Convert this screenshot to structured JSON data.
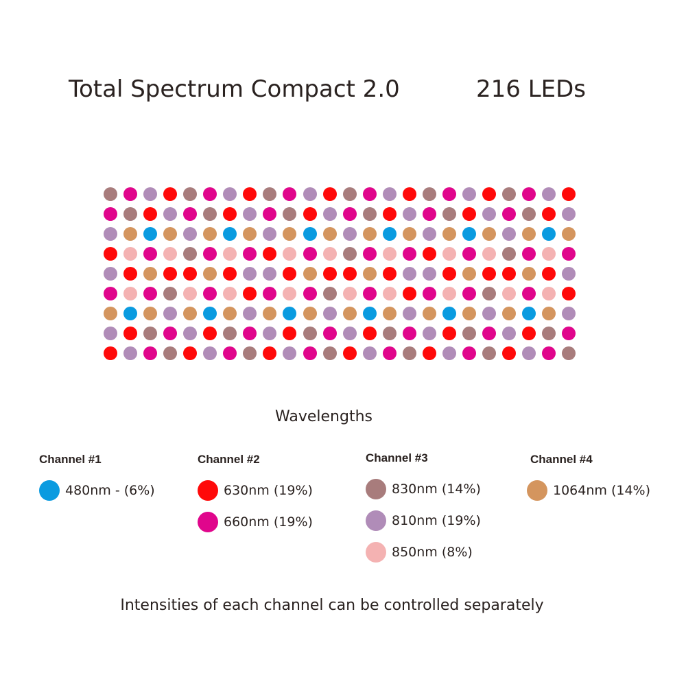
{
  "header": {
    "title": "Total Spectrum Compact 2.0",
    "led_count": "216 LEDs"
  },
  "colors": {
    "B": "#0a9be0",
    "R": "#ff0a0a",
    "M": "#e0068c",
    "D": "#a87c7c",
    "L": "#b08cb8",
    "P": "#f4b2b2",
    "O": "#d4955e"
  },
  "grid_rows": [
    "DMLRDMLRDMLRDMLRDMLRDMLR",
    "MDRLMDRLMDRLMDRLMDRLMDRL",
    "LOBOLOBOLOBOLOBOLOBOLOBO",
    "RPMPDMPMRPMPDMPMRPMPDMPM",
    "LRORRORLLRORRORLLRORRORL",
    "MPMDPMPRMPMDPMPRMPMDPMPR",
    "OBOLOBOLOBOLOBOLOBOLOBOL",
    "LRDMLRDMLRDMLRDMLRDMLRDM",
    "RLMDRLMDRLMDRLMDRLMDRLMD"
  ],
  "legend": {
    "title": "Wavelengths",
    "channels": [
      {
        "name": "Channel #1",
        "items": [
          {
            "label": "480nm - (6%)",
            "color": "#0a9be0"
          }
        ]
      },
      {
        "name": "Channel #2",
        "items": [
          {
            "label": "630nm (19%)",
            "color": "#ff0a0a"
          },
          {
            "label": "660nm (19%)",
            "color": "#e0068c"
          }
        ]
      },
      {
        "name": "Channel #3",
        "items": [
          {
            "label": "830nm (14%)",
            "color": "#a87c7c"
          },
          {
            "label": "810nm (19%)",
            "color": "#b08cb8"
          },
          {
            "label": "850nm (8%)",
            "color": "#f4b2b2"
          }
        ]
      },
      {
        "name": "Channel #4",
        "items": [
          {
            "label": "1064nm (14%)",
            "color": "#d4955e"
          }
        ]
      }
    ]
  },
  "footer": "Intensities of each channel can be controlled separately"
}
